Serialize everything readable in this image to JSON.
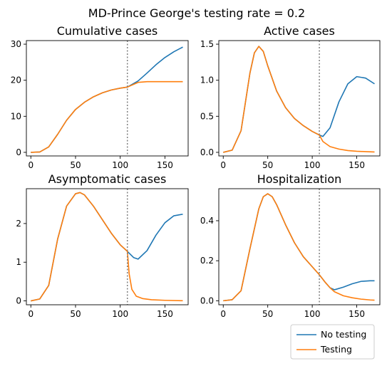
{
  "figure": {
    "suptitle": "MD-Prince George's testing rate = 0.2"
  },
  "colors": {
    "no_testing": "#1f77b4",
    "testing": "#ff7f0e",
    "vline": "#7f7f7f"
  },
  "legend": {
    "placement": "bottom-right",
    "items": [
      {
        "label": "No testing",
        "series": "no_testing"
      },
      {
        "label": "Testing",
        "series": "testing"
      }
    ]
  },
  "chart_data": [
    {
      "type": "line",
      "title": "Cumulative cases",
      "xlim": [
        -5,
        176
      ],
      "ylim": [
        -1,
        31
      ],
      "xticks": [
        0,
        50,
        100,
        150
      ],
      "yticks": [
        0,
        10,
        20,
        30
      ],
      "ytick_labels": [
        "0",
        "10",
        "20",
        "30"
      ],
      "vline_x": 108,
      "series": [
        {
          "key": "no_testing",
          "x": [
            0,
            10,
            20,
            30,
            40,
            50,
            60,
            70,
            80,
            90,
            100,
            108,
            120,
            130,
            140,
            150,
            160,
            170
          ],
          "y": [
            0,
            0.1,
            1.5,
            5.0,
            8.9,
            11.9,
            13.9,
            15.4,
            16.5,
            17.3,
            17.8,
            18.1,
            19.8,
            22.0,
            24.3,
            26.3,
            27.9,
            29.2
          ]
        },
        {
          "key": "testing",
          "x": [
            0,
            10,
            20,
            30,
            40,
            50,
            60,
            70,
            80,
            90,
            100,
            108,
            120,
            130,
            140,
            150,
            160,
            170
          ],
          "y": [
            0,
            0.1,
            1.5,
            5.0,
            8.9,
            11.9,
            13.9,
            15.4,
            16.5,
            17.3,
            17.8,
            18.1,
            19.4,
            19.6,
            19.6,
            19.6,
            19.6,
            19.6
          ]
        }
      ]
    },
    {
      "type": "line",
      "title": "Active cases",
      "xlim": [
        -5,
        176
      ],
      "ylim": [
        -0.05,
        1.55
      ],
      "xticks": [
        0,
        50,
        100,
        150
      ],
      "yticks": [
        0,
        0.5,
        1.0,
        1.5
      ],
      "ytick_labels": [
        "0.0",
        "0.5",
        "1.0",
        "1.5"
      ],
      "vline_x": 108,
      "series": [
        {
          "key": "no_testing",
          "x": [
            0,
            10,
            20,
            30,
            35,
            40,
            45,
            50,
            60,
            70,
            80,
            90,
            100,
            108,
            112,
            120,
            130,
            140,
            150,
            160,
            170
          ],
          "y": [
            0,
            0.03,
            0.3,
            1.1,
            1.38,
            1.47,
            1.4,
            1.2,
            0.85,
            0.62,
            0.47,
            0.37,
            0.29,
            0.24,
            0.22,
            0.34,
            0.7,
            0.95,
            1.05,
            1.03,
            0.95
          ]
        },
        {
          "key": "testing",
          "x": [
            0,
            10,
            20,
            30,
            35,
            40,
            45,
            50,
            60,
            70,
            80,
            90,
            100,
            108,
            112,
            120,
            130,
            140,
            150,
            160,
            170
          ],
          "y": [
            0,
            0.03,
            0.3,
            1.1,
            1.38,
            1.47,
            1.4,
            1.2,
            0.85,
            0.62,
            0.47,
            0.37,
            0.29,
            0.24,
            0.15,
            0.08,
            0.045,
            0.025,
            0.015,
            0.01,
            0.005
          ]
        }
      ]
    },
    {
      "type": "line",
      "title": "Asymptomatic cases",
      "xlim": [
        -5,
        176
      ],
      "ylim": [
        -0.1,
        2.9
      ],
      "xticks": [
        0,
        50,
        100,
        150
      ],
      "yticks": [
        0,
        1,
        2
      ],
      "ytick_labels": [
        "0",
        "1",
        "2"
      ],
      "vline_x": 108,
      "series": [
        {
          "key": "no_testing",
          "x": [
            0,
            10,
            20,
            30,
            40,
            50,
            55,
            60,
            70,
            80,
            90,
            100,
            108,
            115,
            120,
            130,
            140,
            150,
            160,
            170
          ],
          "y": [
            0,
            0.05,
            0.4,
            1.6,
            2.45,
            2.77,
            2.8,
            2.74,
            2.45,
            2.1,
            1.75,
            1.45,
            1.28,
            1.12,
            1.08,
            1.3,
            1.7,
            2.02,
            2.2,
            2.24
          ]
        },
        {
          "key": "testing",
          "x": [
            0,
            10,
            20,
            30,
            40,
            50,
            55,
            60,
            70,
            80,
            90,
            100,
            108,
            110,
            113,
            118,
            125,
            135,
            150,
            170
          ],
          "y": [
            0,
            0.05,
            0.4,
            1.6,
            2.45,
            2.77,
            2.8,
            2.74,
            2.45,
            2.1,
            1.75,
            1.45,
            1.28,
            0.7,
            0.3,
            0.12,
            0.06,
            0.03,
            0.015,
            0.005
          ]
        }
      ]
    },
    {
      "type": "line",
      "title": "Hospitalization",
      "xlim": [
        -5,
        176
      ],
      "ylim": [
        -0.02,
        0.56
      ],
      "xticks": [
        0,
        50,
        100,
        150
      ],
      "yticks": [
        0,
        0.2,
        0.4
      ],
      "ytick_labels": [
        "0.0",
        "0.2",
        "0.4"
      ],
      "vline_x": 108,
      "series": [
        {
          "key": "no_testing",
          "x": [
            0,
            10,
            20,
            30,
            40,
            45,
            50,
            55,
            60,
            70,
            80,
            90,
            100,
            108,
            115,
            120,
            125,
            135,
            145,
            155,
            165,
            170
          ],
          "y": [
            0,
            0.005,
            0.05,
            0.26,
            0.46,
            0.52,
            0.535,
            0.52,
            0.48,
            0.38,
            0.29,
            0.22,
            0.17,
            0.13,
            0.09,
            0.065,
            0.055,
            0.068,
            0.085,
            0.097,
            0.1,
            0.1
          ]
        },
        {
          "key": "testing",
          "x": [
            0,
            10,
            20,
            30,
            40,
            45,
            50,
            55,
            60,
            70,
            80,
            90,
            100,
            108,
            115,
            120,
            125,
            135,
            145,
            155,
            165,
            170
          ],
          "y": [
            0,
            0.005,
            0.05,
            0.26,
            0.46,
            0.52,
            0.535,
            0.52,
            0.48,
            0.38,
            0.29,
            0.22,
            0.17,
            0.13,
            0.09,
            0.065,
            0.045,
            0.025,
            0.015,
            0.008,
            0.004,
            0.003
          ]
        }
      ]
    }
  ]
}
